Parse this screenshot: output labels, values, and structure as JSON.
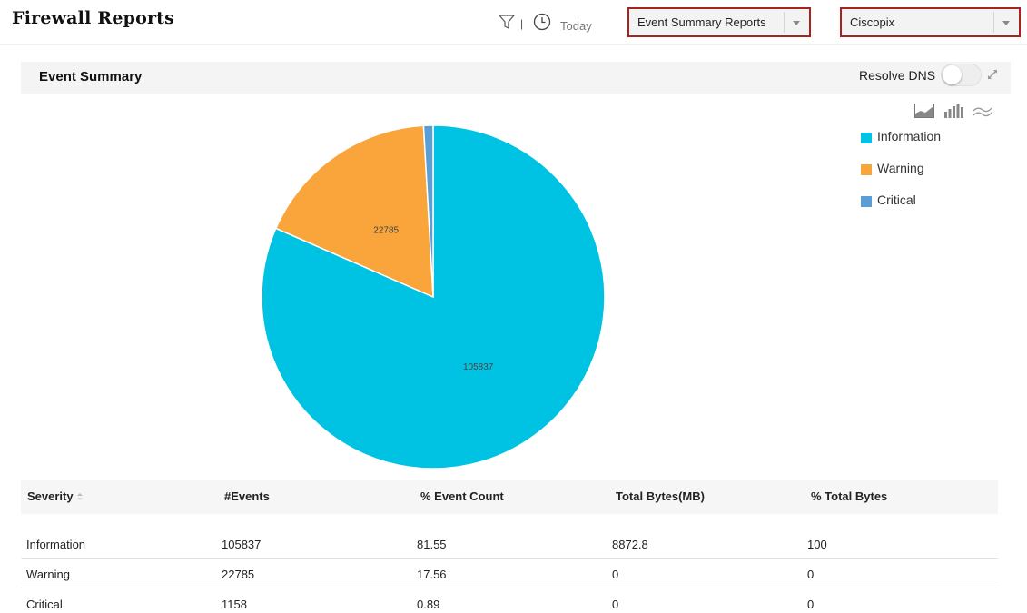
{
  "header": {
    "title": "Firewall Reports",
    "separator": "|",
    "time_range": "Today",
    "report_dropdown": "Event Summary Reports",
    "device_dropdown": "Ciscopix"
  },
  "panel": {
    "title": "Event Summary",
    "resolve_dns_label": "Resolve DNS",
    "resolve_dns_on": false
  },
  "chart_type_icons": [
    "area-chart-icon",
    "bar-chart-icon",
    "line-chart-icon"
  ],
  "chart_data": {
    "type": "pie",
    "categories": [
      "Information",
      "Warning",
      "Critical"
    ],
    "values": [
      105837,
      22785,
      1158
    ],
    "data_labels": [
      "105837",
      "22785",
      ""
    ],
    "colors": [
      "#00c3e3",
      "#f9a53b",
      "#5b9ed6"
    ],
    "legend_position": "right"
  },
  "table": {
    "columns": [
      "Severity",
      "#Events",
      "% Event Count",
      "Total Bytes(MB)",
      "% Total Bytes"
    ],
    "rows": [
      [
        "Information",
        "105837",
        "81.55",
        "8872.8",
        "100"
      ],
      [
        "Warning",
        "22785",
        "17.56",
        "0",
        "0"
      ],
      [
        "Critical",
        "1158",
        "0.89",
        "0",
        "0"
      ]
    ]
  }
}
